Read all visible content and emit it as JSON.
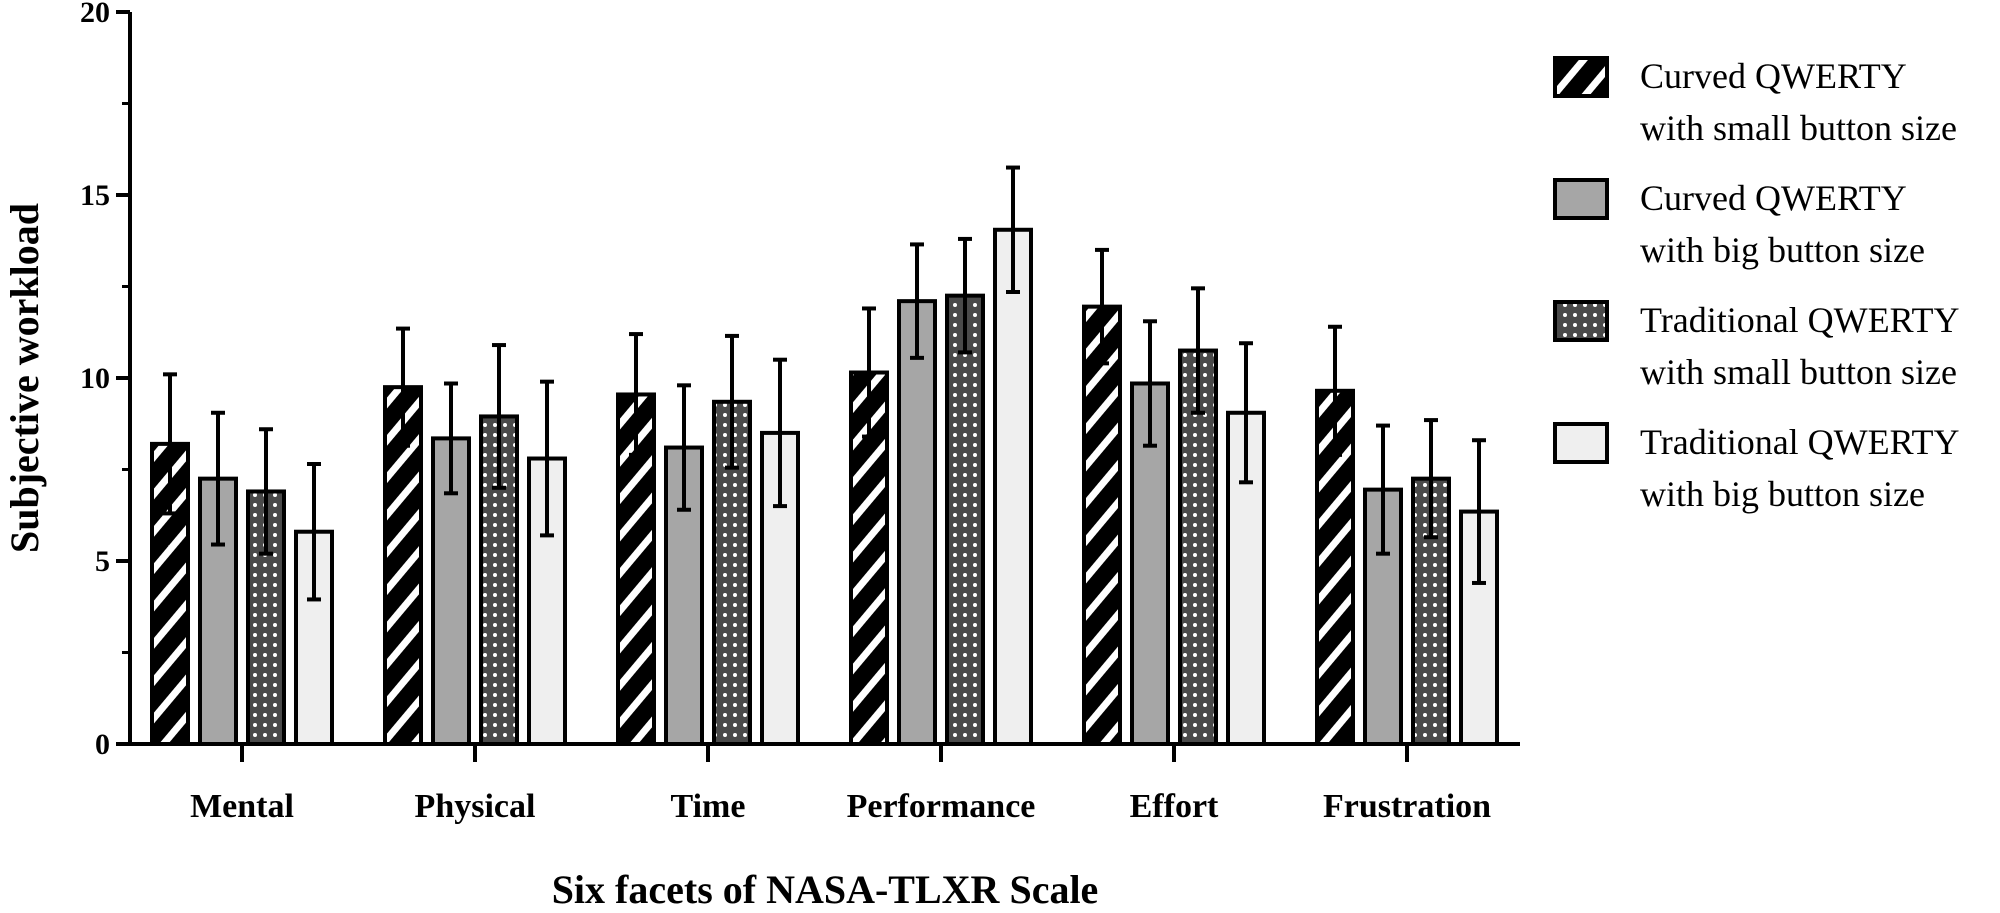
{
  "chart_data": {
    "type": "bar",
    "title": "",
    "xlabel": "Six facets of NASA-TLXR Scale",
    "ylabel": "Subjective workload",
    "ylim": [
      0,
      20
    ],
    "yticks": [
      0,
      5,
      10,
      15,
      20
    ],
    "grid": false,
    "legend_position": "right",
    "categories": [
      "Mental",
      "Physical",
      "Time",
      "Performance",
      "Effort",
      "Frustration"
    ],
    "series": [
      {
        "name": "Curved QWERTY with small button size",
        "legend_lines": [
          "Curved QWERTY",
          "with small button size"
        ],
        "pattern": "diagonal-stripes",
        "values": [
          8.2,
          9.75,
          9.55,
          10.15,
          11.95,
          9.65
        ],
        "errors": [
          1.9,
          1.6,
          1.65,
          1.75,
          1.55,
          1.75
        ]
      },
      {
        "name": "Curved QWERTY with big button size",
        "legend_lines": [
          "Curved QWERTY",
          "with big button size"
        ],
        "pattern": "solid-gray",
        "values": [
          7.25,
          8.35,
          8.1,
          12.1,
          9.85,
          6.95
        ],
        "errors": [
          1.8,
          1.5,
          1.7,
          1.55,
          1.7,
          1.75
        ]
      },
      {
        "name": "Traditional QWERTY with small button size",
        "legend_lines": [
          "Traditional QWERTY",
          "with small button size"
        ],
        "pattern": "dark-dots",
        "values": [
          6.9,
          8.95,
          9.35,
          12.25,
          10.75,
          7.25
        ],
        "errors": [
          1.7,
          1.95,
          1.8,
          1.55,
          1.7,
          1.6
        ]
      },
      {
        "name": "Traditional QWERTY with big button size",
        "legend_lines": [
          "Traditional QWERTY",
          "with big button size"
        ],
        "pattern": "light-solid",
        "values": [
          5.8,
          7.8,
          8.5,
          14.05,
          9.05,
          6.35
        ],
        "errors": [
          1.85,
          2.1,
          2.0,
          1.7,
          1.9,
          1.95
        ]
      }
    ]
  },
  "colors": {
    "stripe_dark": "#000000",
    "stripe_light": "#ffffff",
    "gray": "#a6a6a6",
    "dots_bg": "#4a4a4a",
    "dots_fg": "#ffffff",
    "light": "#efefef",
    "outline": "#000000"
  }
}
